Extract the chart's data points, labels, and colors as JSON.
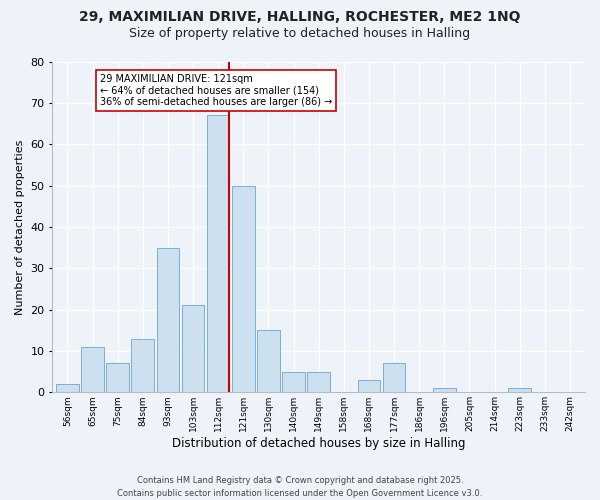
{
  "title1": "29, MAXIMILIAN DRIVE, HALLING, ROCHESTER, ME2 1NQ",
  "title2": "Size of property relative to detached houses in Halling",
  "xlabel": "Distribution of detached houses by size in Halling",
  "ylabel": "Number of detached properties",
  "bin_labels": [
    "56sqm",
    "65sqm",
    "75sqm",
    "84sqm",
    "93sqm",
    "103sqm",
    "112sqm",
    "121sqm",
    "130sqm",
    "140sqm",
    "149sqm",
    "158sqm",
    "168sqm",
    "177sqm",
    "186sqm",
    "196sqm",
    "205sqm",
    "214sqm",
    "223sqm",
    "233sqm",
    "242sqm"
  ],
  "bar_values": [
    2,
    11,
    7,
    13,
    35,
    21,
    67,
    50,
    15,
    5,
    5,
    0,
    3,
    7,
    0,
    1,
    0,
    0,
    1,
    0,
    0
  ],
  "highlight_index": 6,
  "bar_color": "#cce0f0",
  "bar_edge_color": "#7ab0d4",
  "highlight_line_color": "#cc0000",
  "annotation_line1": "29 MAXIMILIAN DRIVE: 121sqm",
  "annotation_line2": "← 64% of detached houses are smaller (154)",
  "annotation_line3": "36% of semi-detached houses are larger (86) →",
  "annotation_box_color": "#ffffff",
  "annotation_box_edge": "#cc0000",
  "ylim": [
    0,
    80
  ],
  "yticks": [
    0,
    10,
    20,
    30,
    40,
    50,
    60,
    70,
    80
  ],
  "background_color": "#eef3fa",
  "footer_line1": "Contains HM Land Registry data © Crown copyright and database right 2025.",
  "footer_line2": "Contains public sector information licensed under the Open Government Licence v3.0.",
  "grid_color": "#ffffff",
  "title1_fontsize": 10,
  "title2_fontsize": 9,
  "xlabel_fontsize": 8.5,
  "ylabel_fontsize": 8
}
